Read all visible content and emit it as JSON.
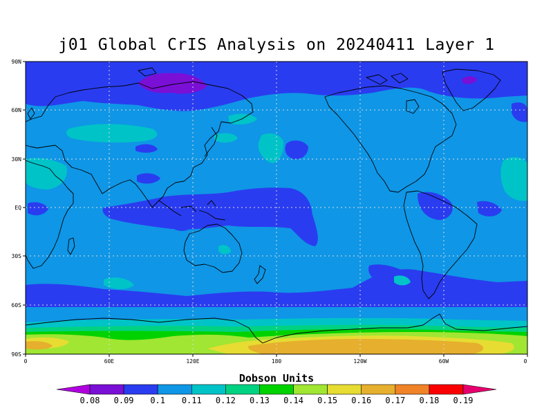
{
  "title": "j01 Global CrIS Analysis on 20240411 Layer 1",
  "axes": {
    "y_ticks": [
      "90N",
      "60N",
      "30N",
      "EQ",
      "30S",
      "60S",
      "90S"
    ],
    "x_ticks": [
      "0",
      "60E",
      "120E",
      "180",
      "120W",
      "60W",
      "0"
    ]
  },
  "colorbar": {
    "title": "Dobson Units",
    "levels": [
      "0.08",
      "0.09",
      "0.1",
      "0.11",
      "0.12",
      "0.13",
      "0.14",
      "0.15",
      "0.16",
      "0.17",
      "0.18",
      "0.19"
    ],
    "colors": [
      "#b000e0",
      "#7a0fd6",
      "#2a3cf0",
      "#0f96e6",
      "#00c3c8",
      "#00d282",
      "#00d200",
      "#a0e632",
      "#e6dc32",
      "#e6af2d",
      "#f08228",
      "#fa0000",
      "#e6006e"
    ]
  },
  "field_colors": {
    "polar_low": "#7a0fd6",
    "low": "#2a3cf0",
    "base": "#0f96e6",
    "mid": "#00c3c8",
    "mid2": "#00d282",
    "green": "#00d200",
    "lime": "#a0e632",
    "yellow": "#e6dc32",
    "orange": "#e6af2d"
  }
}
